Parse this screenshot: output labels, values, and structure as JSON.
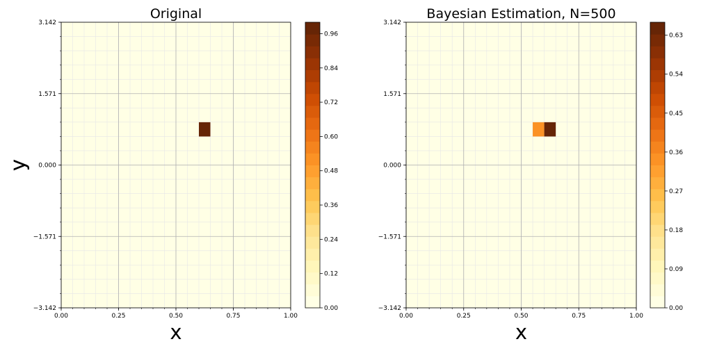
{
  "colors": {
    "background": "#ffffff",
    "grid_major": "#b0b0b0",
    "grid_minor": "#e6e6e6",
    "axis": "#000000",
    "colormap": [
      "#ffffe5",
      "#fff7bc",
      "#fee391",
      "#fec44f",
      "#fe9929",
      "#ec7014",
      "#cc4c02",
      "#993404",
      "#662506"
    ]
  },
  "chart_data": [
    {
      "type": "heatmap",
      "title": "Original",
      "xlabel": "x",
      "ylabel": "y",
      "xlim": [
        0.0,
        1.0
      ],
      "ylim": [
        -3.142,
        3.142
      ],
      "xticks": [
        "0.00",
        "0.25",
        "0.50",
        "0.75",
        "1.00"
      ],
      "xtick_values": [
        0.0,
        0.25,
        0.5,
        0.75,
        1.0
      ],
      "yticks": [
        "3.142",
        "1.571",
        "0.000",
        "−1.571",
        "−3.142"
      ],
      "ytick_values": [
        3.142,
        1.571,
        0.0,
        -1.571,
        -3.142
      ],
      "grid": true,
      "grid_x_bins": 20,
      "grid_y_bins": 20,
      "cells": [
        {
          "x0": 0.6,
          "x1": 0.65,
          "y0": 0.628,
          "y1": 0.942,
          "value": 1.0
        }
      ],
      "background_value": 0.0,
      "colorbar": {
        "min": 0.0,
        "max": 1.0,
        "levels": 24,
        "ticks": [
          "0.00",
          "0.12",
          "0.24",
          "0.36",
          "0.48",
          "0.60",
          "0.72",
          "0.84",
          "0.96"
        ],
        "tick_values": [
          0.0,
          0.12,
          0.24,
          0.36,
          0.48,
          0.6,
          0.72,
          0.84,
          0.96
        ]
      }
    },
    {
      "type": "heatmap",
      "title": "Bayesian Estimation, N=500",
      "xlabel": "x",
      "ylabel": "y",
      "xlim": [
        0.0,
        1.0
      ],
      "ylim": [
        -3.142,
        3.142
      ],
      "xticks": [
        "0.00",
        "0.25",
        "0.50",
        "0.75",
        "1.00"
      ],
      "xtick_values": [
        0.0,
        0.25,
        0.5,
        0.75,
        1.0
      ],
      "yticks": [
        "3.142",
        "1.571",
        "0.000",
        "−1.571",
        "−3.142"
      ],
      "ytick_values": [
        3.142,
        1.571,
        0.0,
        -1.571,
        -3.142
      ],
      "grid": true,
      "grid_x_bins": 20,
      "grid_y_bins": 20,
      "cells": [
        {
          "x0": 0.55,
          "x1": 0.6,
          "y0": 0.628,
          "y1": 0.942,
          "value": 0.33
        },
        {
          "x0": 0.6,
          "x1": 0.65,
          "y0": 0.628,
          "y1": 0.942,
          "value": 0.66
        }
      ],
      "background_value": 0.0,
      "colorbar": {
        "min": 0.0,
        "max": 0.66,
        "levels": 24,
        "ticks": [
          "0.00",
          "0.09",
          "0.18",
          "0.27",
          "0.36",
          "0.45",
          "0.54",
          "0.63"
        ],
        "tick_values": [
          0.0,
          0.09,
          0.18,
          0.27,
          0.36,
          0.45,
          0.54,
          0.63
        ]
      }
    }
  ]
}
